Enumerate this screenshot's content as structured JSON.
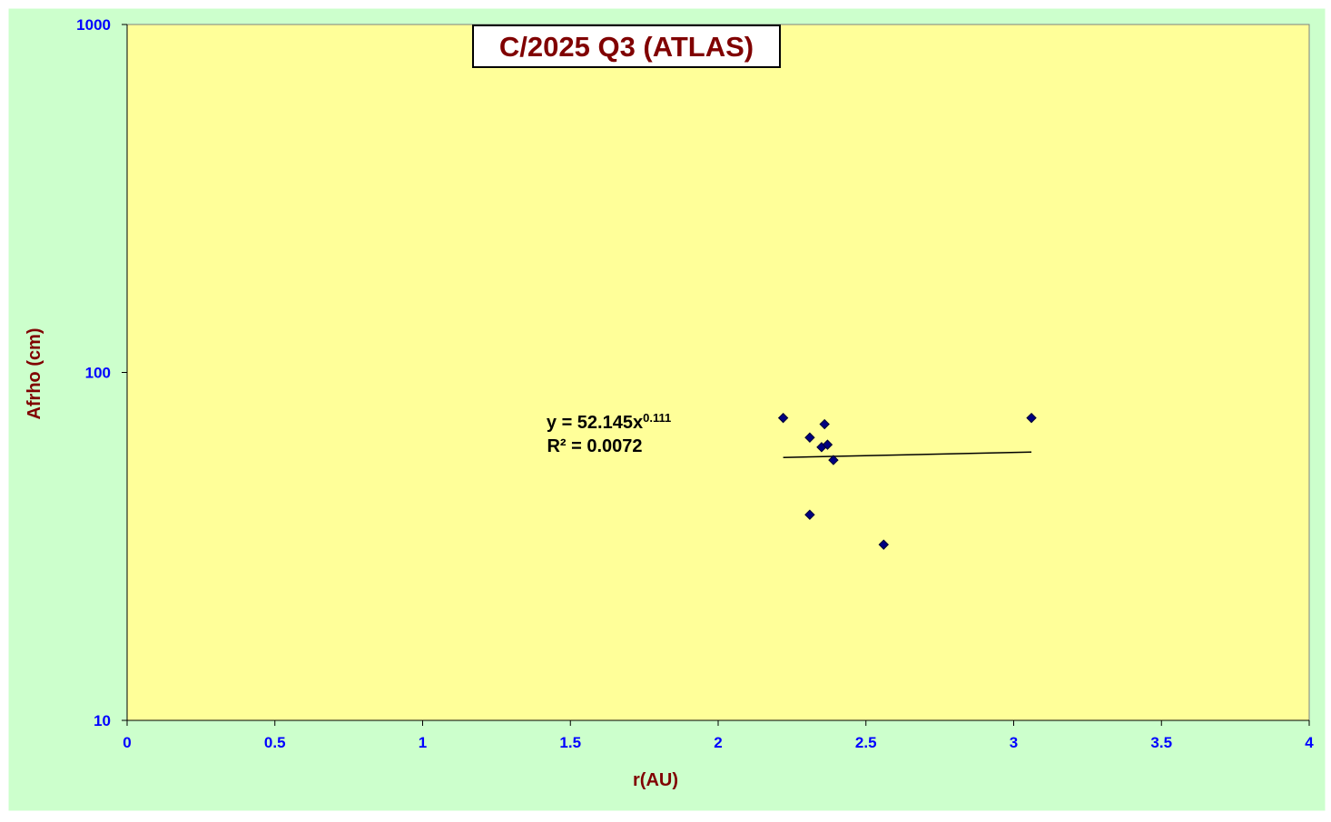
{
  "chart_data": {
    "type": "scatter",
    "title": "C/2025 Q3 (ATLAS)",
    "x_label": "r(AU)",
    "y_label": "Afrho (cm)",
    "x": [
      2.22,
      2.31,
      2.36,
      2.35,
      2.37,
      2.39,
      2.31,
      2.56,
      3.06
    ],
    "y": [
      74,
      65,
      71,
      61,
      62,
      56,
      39,
      32,
      74
    ],
    "color": "#000080",
    "xlim": [
      0,
      4
    ],
    "xticks": [
      0,
      0.5,
      1,
      1.5,
      2,
      2.5,
      3,
      3.5,
      4
    ],
    "ylim": [
      10,
      1000
    ],
    "yticks": [
      10,
      100,
      1000
    ],
    "y_log": true,
    "trendline": {
      "type": "power",
      "equation": "y = 52.145x",
      "coefficient": 52.145,
      "exponent": 0.111,
      "r_squared_label": "R² = 0.0072"
    }
  }
}
